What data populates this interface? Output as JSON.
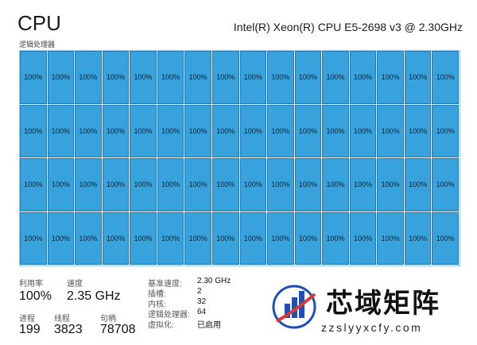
{
  "header": {
    "title": "CPU",
    "subtitle": "逻辑处理器",
    "cpu_model": "Intel(R) Xeon(R) CPU E5-2698 v3 @ 2.30GHz"
  },
  "grid": {
    "columns": 16,
    "rows": 4,
    "cell_value": "100%",
    "fill_color": "#37a2dc",
    "border_color": "#1f78ba",
    "utilization_each": 1.0
  },
  "stats": {
    "util_label": "利用率",
    "util_value": "100%",
    "speed_label": "速度",
    "speed_value": "2.35 GHz",
    "proc_label": "进程",
    "proc_value": "199",
    "threads_label": "线程",
    "threads_value": "3823",
    "handles_label": "句柄",
    "handles_value": "78708"
  },
  "details": [
    {
      "key": "基准速度:",
      "value": "2.30 GHz"
    },
    {
      "key": "插槽:",
      "value": "2"
    },
    {
      "key": "内核:",
      "value": "32"
    },
    {
      "key": "逻辑处理器:",
      "value": "64"
    },
    {
      "key": "虚拟化:",
      "value": "已启用"
    }
  ],
  "watermark": {
    "name": "芯域矩阵",
    "url": "zzslyyxcfy.com",
    "accent": "#1f4fb5",
    "accent2": "#d83a3a"
  }
}
